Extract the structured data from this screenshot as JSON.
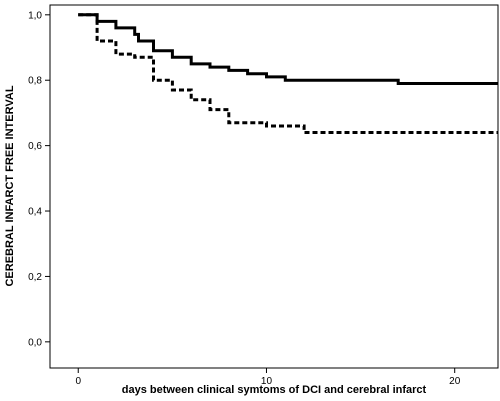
{
  "chart_data": {
    "type": "line",
    "title": "",
    "xlabel": "days between clinical symtoms of DCI and cerebral infarct",
    "ylabel": "CEREBRAL INFARCT FREE INTERVAL",
    "xlim": [
      -1.5,
      22.3
    ],
    "ylim": [
      -0.08,
      1.03
    ],
    "x_ticks": [
      0,
      10,
      20
    ],
    "x_tick_labels": [
      "0",
      "10",
      "20"
    ],
    "y_ticks": [
      0.0,
      0.2,
      0.4,
      0.6,
      0.8,
      1.0
    ],
    "y_tick_labels": [
      "0,0",
      "0,2",
      "0,4",
      "0,6",
      "0,8",
      "1,0"
    ],
    "grid": false,
    "series": [
      {
        "style": "solid",
        "color": "#000000",
        "steps": [
          [
            0,
            1.0
          ],
          [
            1,
            0.98
          ],
          [
            2,
            0.96
          ],
          [
            3,
            0.94
          ],
          [
            3.2,
            0.92
          ],
          [
            4,
            0.89
          ],
          [
            5,
            0.87
          ],
          [
            6,
            0.85
          ],
          [
            7,
            0.84
          ],
          [
            8,
            0.83
          ],
          [
            9,
            0.82
          ],
          [
            10,
            0.81
          ],
          [
            11,
            0.8
          ],
          [
            17,
            0.79
          ],
          [
            22.3,
            0.79
          ]
        ]
      },
      {
        "style": "dashed",
        "color": "#000000",
        "steps": [
          [
            0,
            1.0
          ],
          [
            1,
            0.92
          ],
          [
            2,
            0.88
          ],
          [
            3,
            0.87
          ],
          [
            4,
            0.8
          ],
          [
            5,
            0.77
          ],
          [
            6,
            0.74
          ],
          [
            7,
            0.71
          ],
          [
            8,
            0.67
          ],
          [
            10,
            0.66
          ],
          [
            12,
            0.64
          ],
          [
            22.3,
            0.64
          ]
        ]
      }
    ]
  }
}
